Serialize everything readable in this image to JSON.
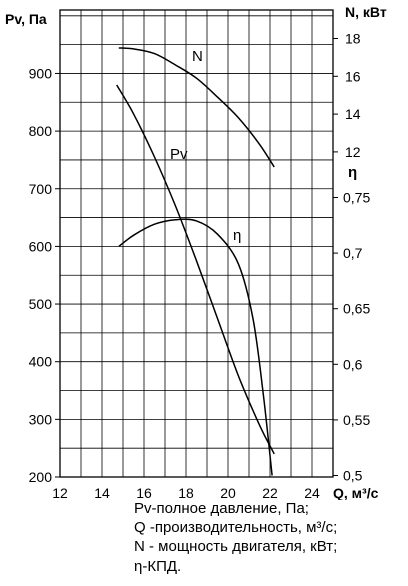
{
  "chart_data": {
    "type": "line",
    "x": {
      "label": "Q, м³/с",
      "range": [
        12,
        25
      ],
      "ticks": [
        12,
        14,
        16,
        18,
        20,
        22,
        24
      ]
    },
    "y_left": {
      "label": "Pv, Па",
      "range": [
        200,
        1000
      ],
      "ticks": [
        200,
        300,
        400,
        500,
        600,
        700,
        800,
        900
      ]
    },
    "y_right_power": {
      "label": "N, кВт",
      "range": [
        10,
        19
      ],
      "ticks": [
        12,
        14,
        16,
        18
      ]
    },
    "y_right_eff": {
      "label": "η",
      "range": [
        0.475,
        0.765
      ],
      "ticks": [
        "0,75",
        "0,7",
        "0,65",
        "0,6",
        "0,55",
        "0,5"
      ],
      "tick_values": [
        0.75,
        0.7,
        0.65,
        0.6,
        0.55,
        0.5
      ]
    },
    "grid": true,
    "series": [
      {
        "name": "N",
        "axis": "power",
        "points": [
          [
            14.8,
            17.5
          ],
          [
            15.5,
            17.45
          ],
          [
            16.5,
            17.2
          ],
          [
            17.5,
            16.6
          ],
          [
            18.5,
            15.9
          ],
          [
            19.5,
            14.9
          ],
          [
            20.5,
            13.8
          ],
          [
            21.5,
            12.4
          ],
          [
            22.2,
            11.2
          ]
        ]
      },
      {
        "name": "Pv",
        "axis": "pressure",
        "points": [
          [
            14.7,
            880
          ],
          [
            15.5,
            830
          ],
          [
            16.5,
            755
          ],
          [
            17.5,
            670
          ],
          [
            18.5,
            575
          ],
          [
            19.5,
            475
          ],
          [
            20.5,
            375
          ],
          [
            21.5,
            290
          ],
          [
            22.2,
            240
          ]
        ]
      },
      {
        "name": "η",
        "axis": "eff",
        "points": [
          [
            14.8,
            0.706
          ],
          [
            15.5,
            0.716
          ],
          [
            16.5,
            0.726
          ],
          [
            17.5,
            0.73
          ],
          [
            18.5,
            0.729
          ],
          [
            19.5,
            0.717
          ],
          [
            20.5,
            0.69
          ],
          [
            21.2,
            0.64
          ],
          [
            21.7,
            0.57
          ],
          [
            22.1,
            0.5
          ]
        ]
      }
    ]
  },
  "legend": [
    "Pv-полное давление, Па;",
    "Q -производительность, м³/с;",
    "N - мощность двигателя, кВт;",
    "η-КПД."
  ]
}
